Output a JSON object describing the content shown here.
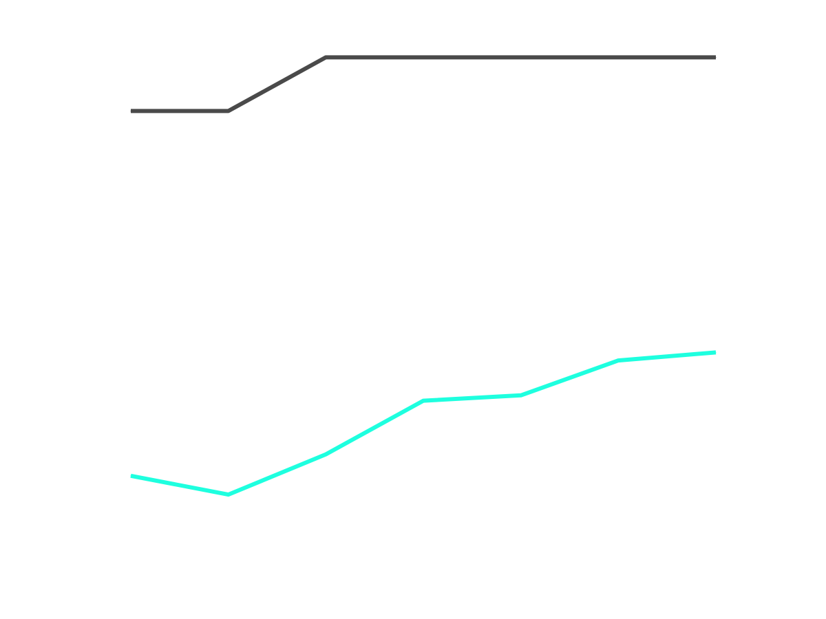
{
  "chart_data": {
    "type": "line",
    "title": "",
    "xlabel": "",
    "ylabel": "",
    "grid": false,
    "legend": "none",
    "x": [
      0,
      1,
      2,
      3,
      4,
      5,
      6
    ],
    "ylim": [
      0,
      100
    ],
    "series": [
      {
        "color": "#4a4a4a",
        "values": [
          87,
          87,
          97,
          97,
          97,
          97,
          97
        ]
      },
      {
        "color": "#1effdf",
        "values": [
          19,
          15.5,
          23,
          33,
          34,
          40.5,
          42
        ]
      }
    ]
  }
}
